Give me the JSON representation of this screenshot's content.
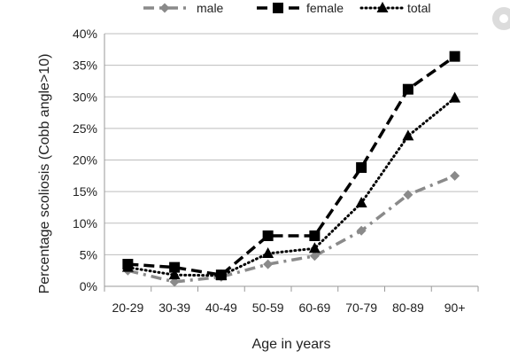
{
  "chart_data": {
    "type": "line",
    "title": "",
    "xlabel": "Age in years",
    "ylabel": "Percentage scoliosis (Cobb angle>10)",
    "categories": [
      "20-29",
      "30-39",
      "40-49",
      "50-59",
      "60-69",
      "70-79",
      "80-89",
      "90+"
    ],
    "y_ticks": [
      "0%",
      "5%",
      "10%",
      "15%",
      "20%",
      "25%",
      "30%",
      "35%",
      "40%"
    ],
    "ylim": [
      0,
      40
    ],
    "grid": "horizontal",
    "legend_position": "top",
    "series": [
      {
        "name": "male",
        "values": [
          2.5,
          0.7,
          1.5,
          3.5,
          4.8,
          8.8,
          14.5,
          17.5
        ],
        "color": "#8a8a8a",
        "line_style": "dash-dot",
        "marker": "diamond"
      },
      {
        "name": "female",
        "values": [
          3.5,
          3.0,
          1.8,
          8.0,
          8.0,
          18.8,
          31.2,
          36.4
        ],
        "color": "#000000",
        "line_style": "dashed",
        "marker": "square"
      },
      {
        "name": "total",
        "values": [
          3.0,
          1.8,
          1.7,
          5.2,
          6.0,
          13.2,
          23.8,
          29.8
        ],
        "color": "#000000",
        "line_style": "dotted",
        "marker": "triangle"
      }
    ]
  }
}
